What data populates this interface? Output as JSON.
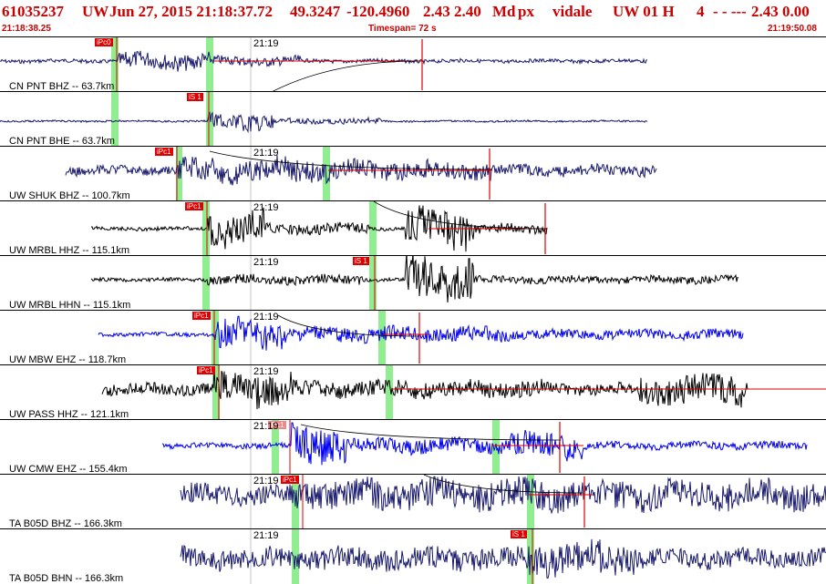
{
  "header": {
    "event_id": "61035237",
    "network": "UW",
    "datetime": "Jun 27, 2015 21:18:37.72",
    "lat": "49.3247",
    "lon": "-120.4960",
    "mag": "2.43 2.40",
    "magtype": "Md",
    "etype": "px",
    "analyst": "vidale",
    "source": "UW 01 H",
    "quality": "4",
    "dashes": "- - ---",
    "right_values": "2.43 0.00"
  },
  "subbar": {
    "start_time": "21:18:38.25",
    "timespan": "Timespan=  72 s",
    "end_time": "21:19:50.08"
  },
  "colors": {
    "header": "#cc0000",
    "navy": "#1a1a6e",
    "black": "#000000",
    "blue": "#0000ee",
    "green": "#90ee90",
    "pick": "#e00000"
  },
  "panels": [
    {
      "station": "CN PNT BHZ -- 63.7km",
      "time_tick": "21:19",
      "pick_label": "iPc0",
      "pick_light": false,
      "trace_color": "navy"
    },
    {
      "station": "CN PNT BHE -- 63.7km",
      "time_tick": "",
      "pick_label": "iS 1",
      "pick_light": false,
      "trace_color": "navy"
    },
    {
      "station": "UW SHUK BHZ -- 100.7km",
      "time_tick": "21:19",
      "pick_label": "iPc1",
      "pick_light": false,
      "trace_color": "navy"
    },
    {
      "station": "UW MRBL HHZ -- 115.1km",
      "time_tick": "21:19",
      "pick_label": "iPc1",
      "pick_light": false,
      "trace_color": "black"
    },
    {
      "station": "UW MRBL HHN -- 115.1km",
      "time_tick": "21:19",
      "pick_label": "iS 1",
      "pick_light": false,
      "trace_color": "black"
    },
    {
      "station": "UW MBW EHZ -- 118.7km",
      "time_tick": "21:19",
      "pick_label": "iPc1",
      "pick_light": false,
      "trace_color": "blue"
    },
    {
      "station": "UW PASS HHZ -- 121.1km",
      "time_tick": "21:19",
      "pick_label": "iPc1",
      "pick_light": false,
      "trace_color": "black"
    },
    {
      "station": "UW CMW EHZ -- 155.4km",
      "time_tick": "21:19",
      "pick_label": "iPc1",
      "pick_light": true,
      "trace_color": "blue"
    },
    {
      "station": "TA B05D BHZ -- 166.3km",
      "time_tick": "21:19",
      "pick_label": "iPc1",
      "pick_light": false,
      "trace_color": "navy"
    },
    {
      "station": "TA B05D BHN -- 166.3km",
      "time_tick": "21:19",
      "pick_label": "iS 1",
      "pick_light": false,
      "trace_color": "navy"
    }
  ]
}
